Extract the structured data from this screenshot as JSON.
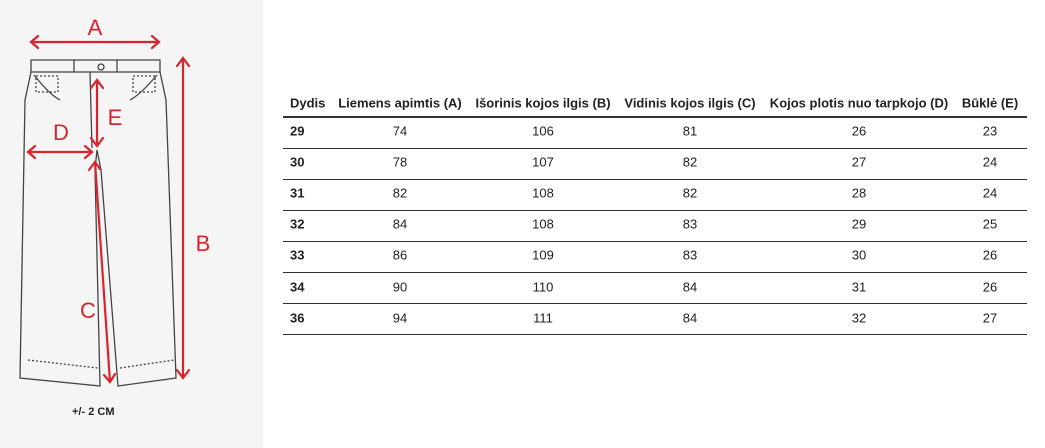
{
  "figure": {
    "labels": [
      "A",
      "B",
      "C",
      "D",
      "E"
    ],
    "note": "+/-  2 CM"
  },
  "table": {
    "columns": [
      "Dydis",
      "Liemens apimtis (A)",
      "Išorinis kojos ilgis (B)",
      "Vidinis kojos ilgis (C)",
      "Kojos plotis nuo tarpkojo (D)",
      "Būklė (E)"
    ],
    "rows": [
      [
        29,
        74,
        106,
        81,
        26,
        23
      ],
      [
        30,
        78,
        107,
        82,
        27,
        24
      ],
      [
        31,
        82,
        108,
        82,
        28,
        24
      ],
      [
        32,
        84,
        108,
        83,
        29,
        25
      ],
      [
        33,
        86,
        109,
        83,
        30,
        26
      ],
      [
        34,
        90,
        110,
        84,
        31,
        26
      ],
      [
        36,
        94,
        111,
        84,
        32,
        27
      ]
    ]
  }
}
